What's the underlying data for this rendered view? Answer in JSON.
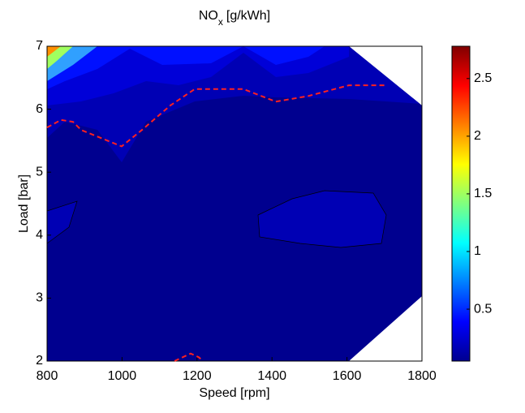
{
  "chart_data": {
    "type": "contour",
    "title": "NO",
    "title_subscript": "x",
    "title_unit": "[g/kWh]",
    "x_label": "Speed   [rpm]",
    "y_label": "Load   [bar]",
    "xlim": [
      800,
      1800
    ],
    "xticks": [
      800,
      1000,
      1200,
      1400,
      1600,
      1800
    ],
    "ylim": [
      2,
      7
    ],
    "yticks": [
      2,
      3,
      4,
      5,
      6,
      7
    ],
    "colorbar_lim": [
      0.05,
      2.78
    ],
    "colorbar_ticks": [
      0.5,
      1,
      1.5,
      2,
      2.5
    ],
    "series": [
      {
        "color": "#ff2020",
        "x": [
          800,
          837,
          869,
          891,
          945,
          999,
          1053,
          1129,
          1194,
          1324,
          1410,
          1497,
          1605,
          1703,
          null,
          1140,
          1183,
          1205,
          1216
        ],
        "values": [
          5.71,
          5.83,
          5.8,
          5.67,
          5.54,
          5.41,
          5.67,
          6.06,
          6.32,
          6.32,
          6.12,
          6.21,
          6.38,
          6.38,
          null,
          2.0,
          2.12,
          2.06,
          2.0
        ]
      }
    ]
  }
}
